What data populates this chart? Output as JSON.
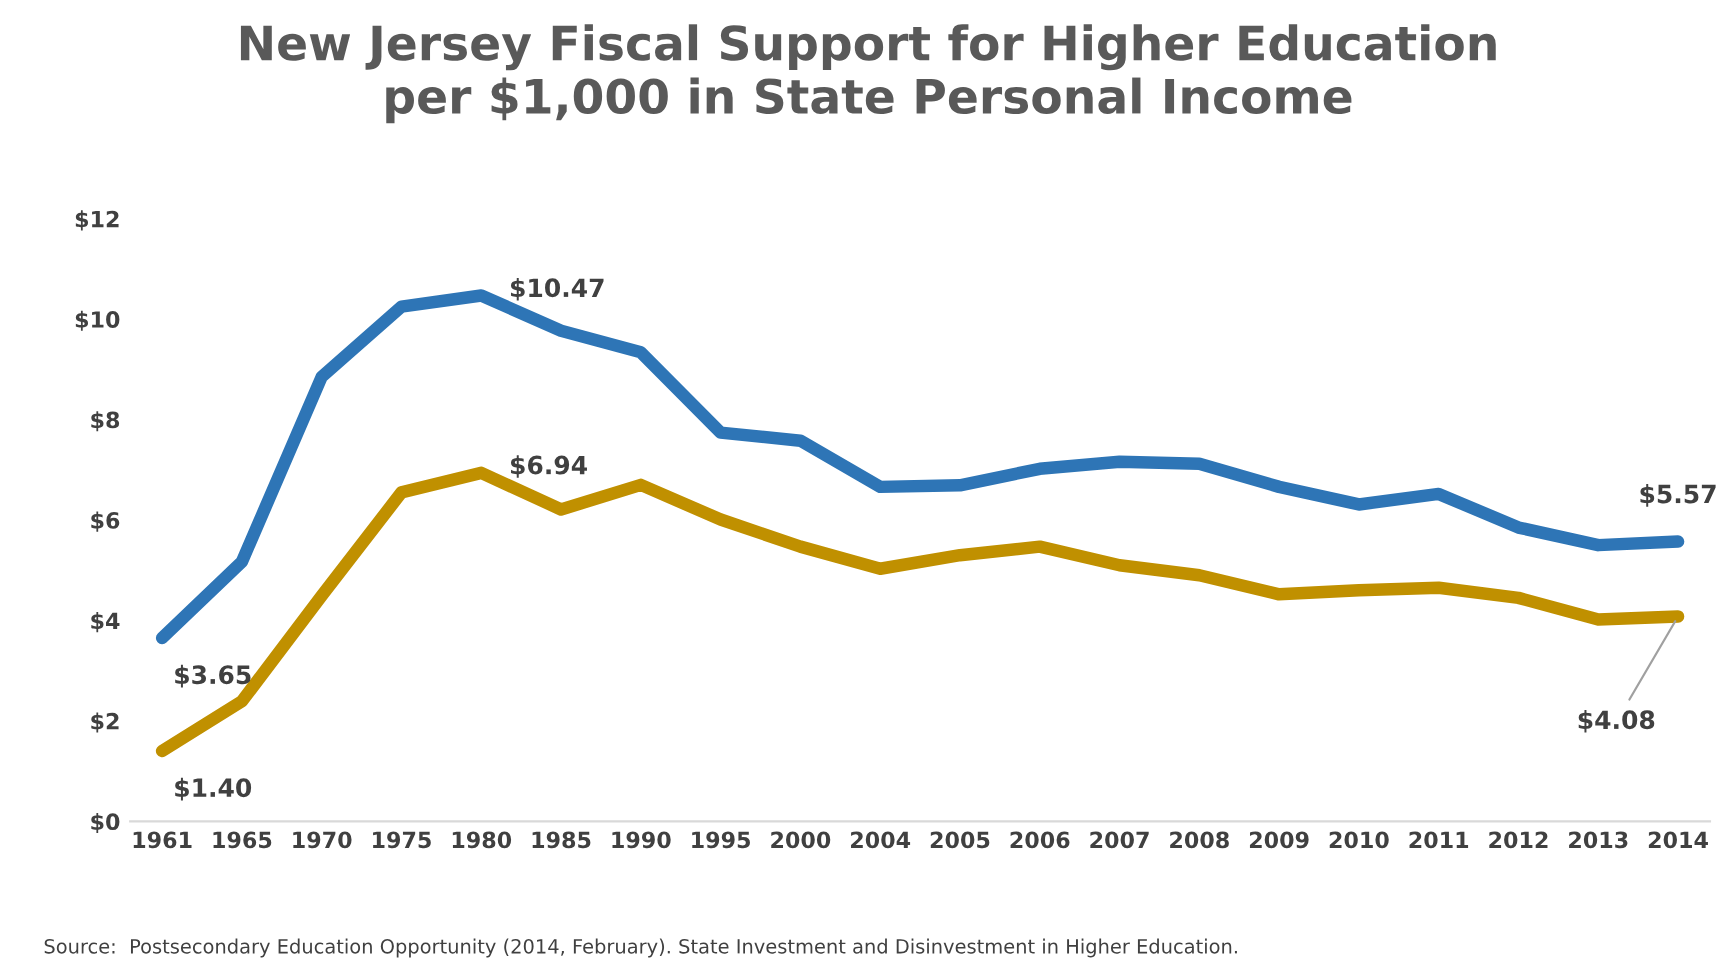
{
  "chart_data": {
    "type": "line",
    "title": "New Jersey Fiscal Support for Higher Education\nper $1,000 in State Personal Income",
    "categories": [
      "1961",
      "1965",
      "1970",
      "1975",
      "1980",
      "1985",
      "1990",
      "1995",
      "2000",
      "2004",
      "2005",
      "2006",
      "2007",
      "2008",
      "2009",
      "2010",
      "2011",
      "2012",
      "2013",
      "2014"
    ],
    "series": [
      {
        "color": "#2e75b6",
        "values": [
          3.65,
          5.17,
          8.85,
          10.25,
          10.47,
          9.77,
          9.34,
          7.74,
          7.58,
          6.66,
          6.69,
          7.02,
          7.16,
          7.12,
          6.66,
          6.31,
          6.52,
          5.85,
          5.5,
          5.57
        ],
        "value_labels": [
          "$3.65",
          null,
          null,
          null,
          "$10.47",
          null,
          null,
          null,
          null,
          null,
          null,
          null,
          null,
          null,
          null,
          null,
          null,
          null,
          null,
          "$5.57"
        ]
      },
      {
        "color": "#c09000",
        "values": [
          1.4,
          2.39,
          4.49,
          6.55,
          6.94,
          6.21,
          6.7,
          6.01,
          5.47,
          5.03,
          5.3,
          5.47,
          5.1,
          4.9,
          4.52,
          4.6,
          4.65,
          4.45,
          4.02,
          4.08
        ],
        "value_labels": [
          "$1.40",
          null,
          null,
          null,
          "$6.94",
          null,
          null,
          null,
          null,
          null,
          null,
          null,
          null,
          null,
          null,
          null,
          null,
          null,
          null,
          "$4.08"
        ]
      }
    ],
    "ylim": [
      0,
      12
    ],
    "yticks": [
      {
        "value": 0,
        "label": "$0"
      },
      {
        "value": 2,
        "label": "$2"
      },
      {
        "value": 4,
        "label": "$4"
      },
      {
        "value": 6,
        "label": "$6"
      },
      {
        "value": 8,
        "label": "$8"
      },
      {
        "value": 10,
        "label": "$10"
      },
      {
        "value": 12,
        "label": "$12"
      }
    ],
    "grid": false,
    "legend": false,
    "marker": "none",
    "line_style": "solid",
    "annotations": [
      "Source:  Postsecondary Education Opportunity (2014, February). State Investment and Disinvestment in Higher Education."
    ]
  }
}
